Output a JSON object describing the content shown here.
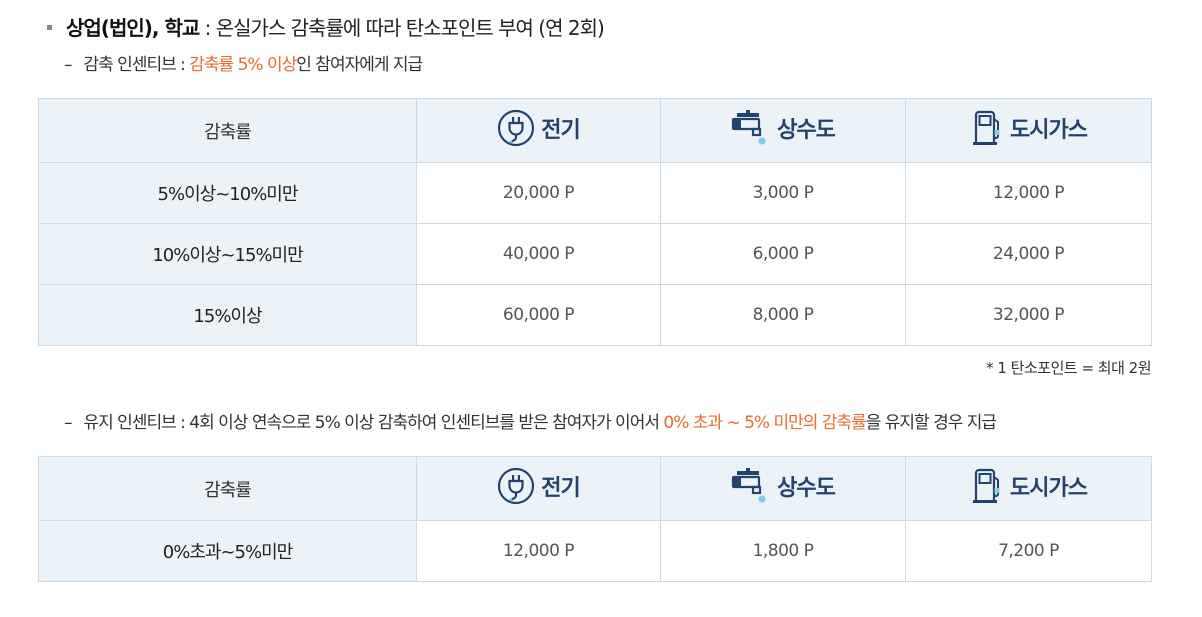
{
  "heading": {
    "title_bold": "상업(법인), 학교",
    "title_rest": " : 온실가스 감축률에 따라 탄소포인트 부여 (연 2회)"
  },
  "reduction_incentive": {
    "dash": "–",
    "prefix": "감축 인센티브 : ",
    "highlight": "감축률 5% 이상",
    "suffix": "인 참여자에게 지급"
  },
  "table_headers": {
    "rate": "감축률",
    "electricity": "전기",
    "water": "상수도",
    "gas": "도시가스"
  },
  "table1_rows": [
    {
      "rate": "5%이상~10%미만",
      "electricity": "20,000 P",
      "water": "3,000 P",
      "gas": "12,000 P"
    },
    {
      "rate": "10%이상~15%미만",
      "electricity": "40,000 P",
      "water": "6,000 P",
      "gas": "24,000 P"
    },
    {
      "rate": "15%이상",
      "electricity": "60,000 P",
      "water": "8,000 P",
      "gas": "32,000 P"
    }
  ],
  "note": "* 1 탄소포인트 = 최대 2원",
  "maintenance_incentive": {
    "dash": "–",
    "prefix": "유지 인센티브 : 4회 이상 연속으로 5% 이상 감축하여 인센티브를 받은 참여자가 이어서 ",
    "highlight": "0% 초과 ~ 5% 미만의 감축률",
    "suffix": "을 유지할 경우 지급"
  },
  "table2_rows": [
    {
      "rate": "0%초과~5%미만",
      "electricity": "12,000 P",
      "water": "1,800 P",
      "gas": "7,200 P"
    }
  ],
  "icons": {
    "electricity": "plug-icon",
    "water": "faucet-icon",
    "gas": "gas-meter-icon"
  },
  "colors": {
    "highlight": "#ee6a2e",
    "header_text": "#23426e",
    "header_bg": "#ecf3f8",
    "border": "#c9dbe6"
  }
}
